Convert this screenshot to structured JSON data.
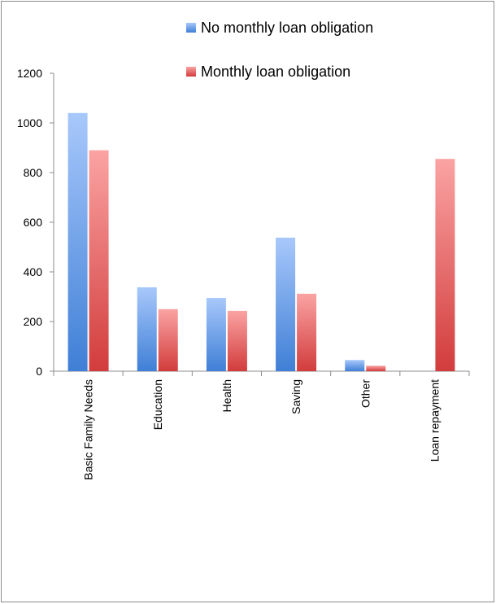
{
  "chart_data": {
    "type": "bar",
    "categories": [
      "Basic Family Needs",
      "Education",
      "Health",
      "Saving",
      "Other",
      "Loan repayment"
    ],
    "series": [
      {
        "name": "No monthly loan obligation",
        "values": [
          1040,
          338,
          295,
          538,
          45,
          0
        ]
      },
      {
        "name": "Monthly loan obligation",
        "values": [
          890,
          250,
          243,
          312,
          22,
          855
        ]
      }
    ],
    "ylim": [
      0,
      1200
    ],
    "yticks": [
      "0",
      "200",
      "400",
      "600",
      "800",
      "1000",
      "1200"
    ],
    "grid": false,
    "legend_position": "top-right",
    "colors": {
      "series_0_dark": "#3f7fd6",
      "series_0_light": "#a8c8fb",
      "series_1_dark": "#d23c3c",
      "series_1_light": "#fba3a3",
      "axis": "#8c8c8c"
    }
  }
}
